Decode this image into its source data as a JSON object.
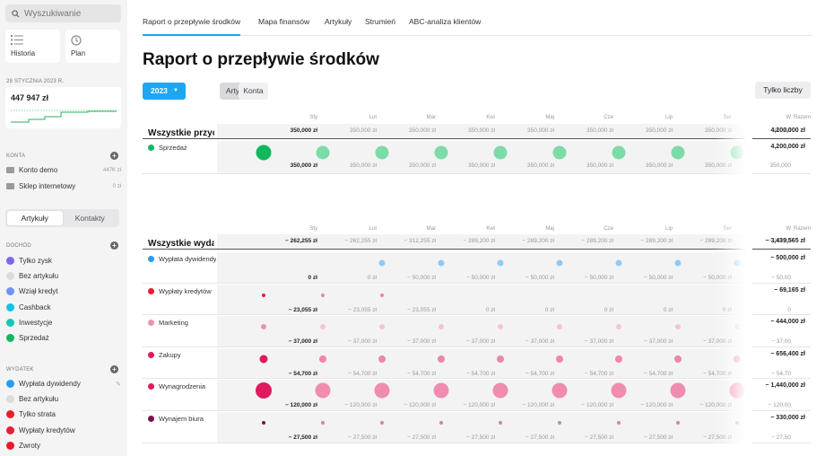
{
  "sidebar": {
    "search_placeholder": "Wyszukiwanie",
    "nav": [
      {
        "label": "Historia"
      },
      {
        "label": "Plan"
      }
    ],
    "date_label": "28 STYCZNIA 2023 R.",
    "balance": "447 947 zł",
    "accounts_label": "KONTA",
    "accounts": [
      {
        "name": "Konto demo",
        "value": "447K zł"
      },
      {
        "name": "Sklep internetowy",
        "value": "0 zł"
      }
    ],
    "toggle": [
      "Artykuły",
      "Kontakty"
    ],
    "income_label": "DOCHÓD",
    "income": [
      {
        "name": "Tylko zysk",
        "color": "#7b67ee"
      },
      {
        "name": "Bez artykułu",
        "color": "#dcdcdc"
      },
      {
        "name": "Wziął kredyt",
        "color": "#6d93f5"
      },
      {
        "name": "Cashback",
        "color": "#12c2e8"
      },
      {
        "name": "Inwestycje",
        "color": "#14c7b6"
      },
      {
        "name": "Sprzedaż",
        "color": "#12b85c"
      }
    ],
    "expense_label": "WYDATEK",
    "expense": [
      {
        "name": "Wypłata dywidendy",
        "color": "#2b9bf0"
      },
      {
        "name": "Bez artykułu",
        "color": "#dcdcdc"
      },
      {
        "name": "Tylko strata",
        "color": "#ea1c2c"
      },
      {
        "name": "Wypłaty kredytów",
        "color": "#e81e36"
      },
      {
        "name": "Zwroty",
        "color": "#e81a2a"
      }
    ]
  },
  "tabs": [
    "Raport o przepływie środków",
    "Mapa finansów",
    "Artykuły",
    "Strumień",
    "ABC-analiza klientów"
  ],
  "title": "Raport o przepływie środków",
  "year": "2023",
  "seg": [
    "Artykuły",
    "Konta"
  ],
  "only_numbers": "Tylko liczby",
  "months": [
    "Sty",
    "Lut",
    "Mar",
    "Kwi",
    "Maj",
    "Cze",
    "Lip",
    "Ser",
    "W"
  ],
  "razem": "Razem",
  "income_section": {
    "title": "Wszystkie przychody",
    "totals": [
      "350,000 zł",
      "350,000 zł",
      "350,000 zł",
      "350,000 zł",
      "350,000 zł",
      "350,000 zł",
      "350,000 zł",
      "350,000 zł",
      "350,00"
    ],
    "total": "4,200,000 zł",
    "rows": [
      {
        "name": "Sprzedaż",
        "color": "#12b85c",
        "light": "#7ddba8",
        "sizes": [
          17,
          15,
          15,
          15,
          15,
          15,
          15,
          15,
          15
        ],
        "values": [
          "350,000 zł",
          "350,000 zł",
          "350,000 zł",
          "350,000 zł",
          "350,000 zł",
          "350,000 zł",
          "350,000 zł",
          "350,000 zł",
          "350,000"
        ],
        "total": "4,200,000 zł"
      }
    ]
  },
  "expense_section": {
    "title": "Wszystkie wydatki",
    "totals": [
      "− 262,255 zł",
      "− 262,255 zł",
      "− 312,255 zł",
      "− 289,200 zł",
      "− 289,200 zł",
      "− 289,200 zł",
      "− 289,200 zł",
      "− 289,200 zł",
      "− 289,20"
    ],
    "total": "− 3,439,565 zł",
    "rows": [
      {
        "name": "Wypłata dywidendy",
        "color": "#2b9bf0",
        "light": "#8fcaf5",
        "sizes": [
          0,
          0,
          7,
          7,
          7,
          7,
          7,
          7,
          7
        ],
        "values": [
          "0 zł",
          "0 zł",
          "− 50,000 zł",
          "− 50,000 zł",
          "− 50,000 zł",
          "− 50,000 zł",
          "− 50,000 zł",
          "− 50,000 zł",
          "− 50,00"
        ],
        "total": "− 500,000 zł"
      },
      {
        "name": "Wypłaty kredytów",
        "color": "#e81e36",
        "light": "#f2838f",
        "sizes": [
          4,
          4,
          4,
          0,
          0,
          0,
          0,
          0,
          0
        ],
        "values": [
          "− 23,055 zł",
          "− 23,055 zł",
          "− 23,055 zł",
          "0 zł",
          "0 zł",
          "0 zł",
          "0 zł",
          "0 zł",
          "0"
        ],
        "total": "− 69,165 zł"
      },
      {
        "name": "Marketing",
        "color": "#f090b0",
        "light": "#f6c3d4",
        "sizes": [
          6,
          6,
          6,
          6,
          6,
          6,
          6,
          6,
          6
        ],
        "values": [
          "− 37,000 zł",
          "− 37,000 zł",
          "− 37,000 zł",
          "− 37,000 zł",
          "− 37,000 zł",
          "− 37,000 zł",
          "− 37,000 zł",
          "− 37,000 zł",
          "− 37,00"
        ],
        "total": "− 444,000 zł"
      },
      {
        "name": "Zakupy",
        "color": "#e0195f",
        "light": "#ee86ab",
        "sizes": [
          9,
          8,
          8,
          8,
          8,
          8,
          8,
          8,
          8
        ],
        "values": [
          "− 54,700 zł",
          "− 54,700 zł",
          "− 54,700 zł",
          "− 54,700 zł",
          "− 54,700 zł",
          "− 54,700 zł",
          "− 54,700 zł",
          "− 54,700 zł",
          "− 54,70"
        ],
        "total": "− 656,400 zł"
      },
      {
        "name": "Wynagrodzenia",
        "color": "#e01a5e",
        "light": "#f08caf",
        "sizes": [
          18,
          17,
          17,
          17,
          17,
          17,
          17,
          17,
          17
        ],
        "values": [
          "− 120,000 zł",
          "− 120,000 zł",
          "− 120,000 zł",
          "− 120,000 zł",
          "− 120,000 zł",
          "− 120,000 zł",
          "− 120,000 zł",
          "− 120,000 zł",
          "− 120,00"
        ],
        "total": "− 1,440,000 zł"
      },
      {
        "name": "Wynajem biura",
        "color": "#7a1242",
        "light": "#c98aa2",
        "sizes": [
          4,
          4,
          4,
          4,
          4,
          4,
          4,
          4,
          4
        ],
        "values": [
          "− 27,500 zł",
          "− 27,500 zł",
          "− 27,500 zł",
          "− 27,500 zł",
          "− 27,500 zł",
          "− 27,500 zł",
          "− 27,500 zł",
          "− 27,500 zł",
          "− 27,50"
        ],
        "total": "− 330,000 zł"
      }
    ]
  }
}
